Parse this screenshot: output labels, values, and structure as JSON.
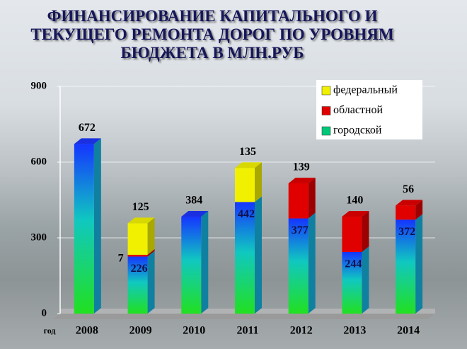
{
  "chart_data": {
    "type": "stacked-bar-3d",
    "title": "ФИНАНСИРОВАНИЕ КАПИТАЛЬНОГО И ТЕКУЩЕГО РЕМОНТА ДОРОГ  ПО УРОВНЯМ БЮДЖЕТА В МЛН.РУБ",
    "x_label": "год",
    "categories": [
      "2008",
      "2009",
      "2010",
      "2011",
      "2012",
      "2013",
      "2014"
    ],
    "series": [
      {
        "name": "городской",
        "color": "#00c878",
        "values": [
          672,
          226,
          384,
          442,
          377,
          244,
          372
        ]
      },
      {
        "name": "областной",
        "color": "#e00000",
        "values": [
          null,
          7,
          null,
          null,
          139,
          140,
          56
        ]
      },
      {
        "name": "федеральный",
        "color": "#f0f000",
        "values": [
          null,
          125,
          null,
          135,
          null,
          null,
          null
        ]
      }
    ],
    "ylim": [
      0,
      900
    ],
    "yticks": [
      0,
      300,
      600,
      900
    ],
    "grid": true,
    "legend": "top-right"
  }
}
